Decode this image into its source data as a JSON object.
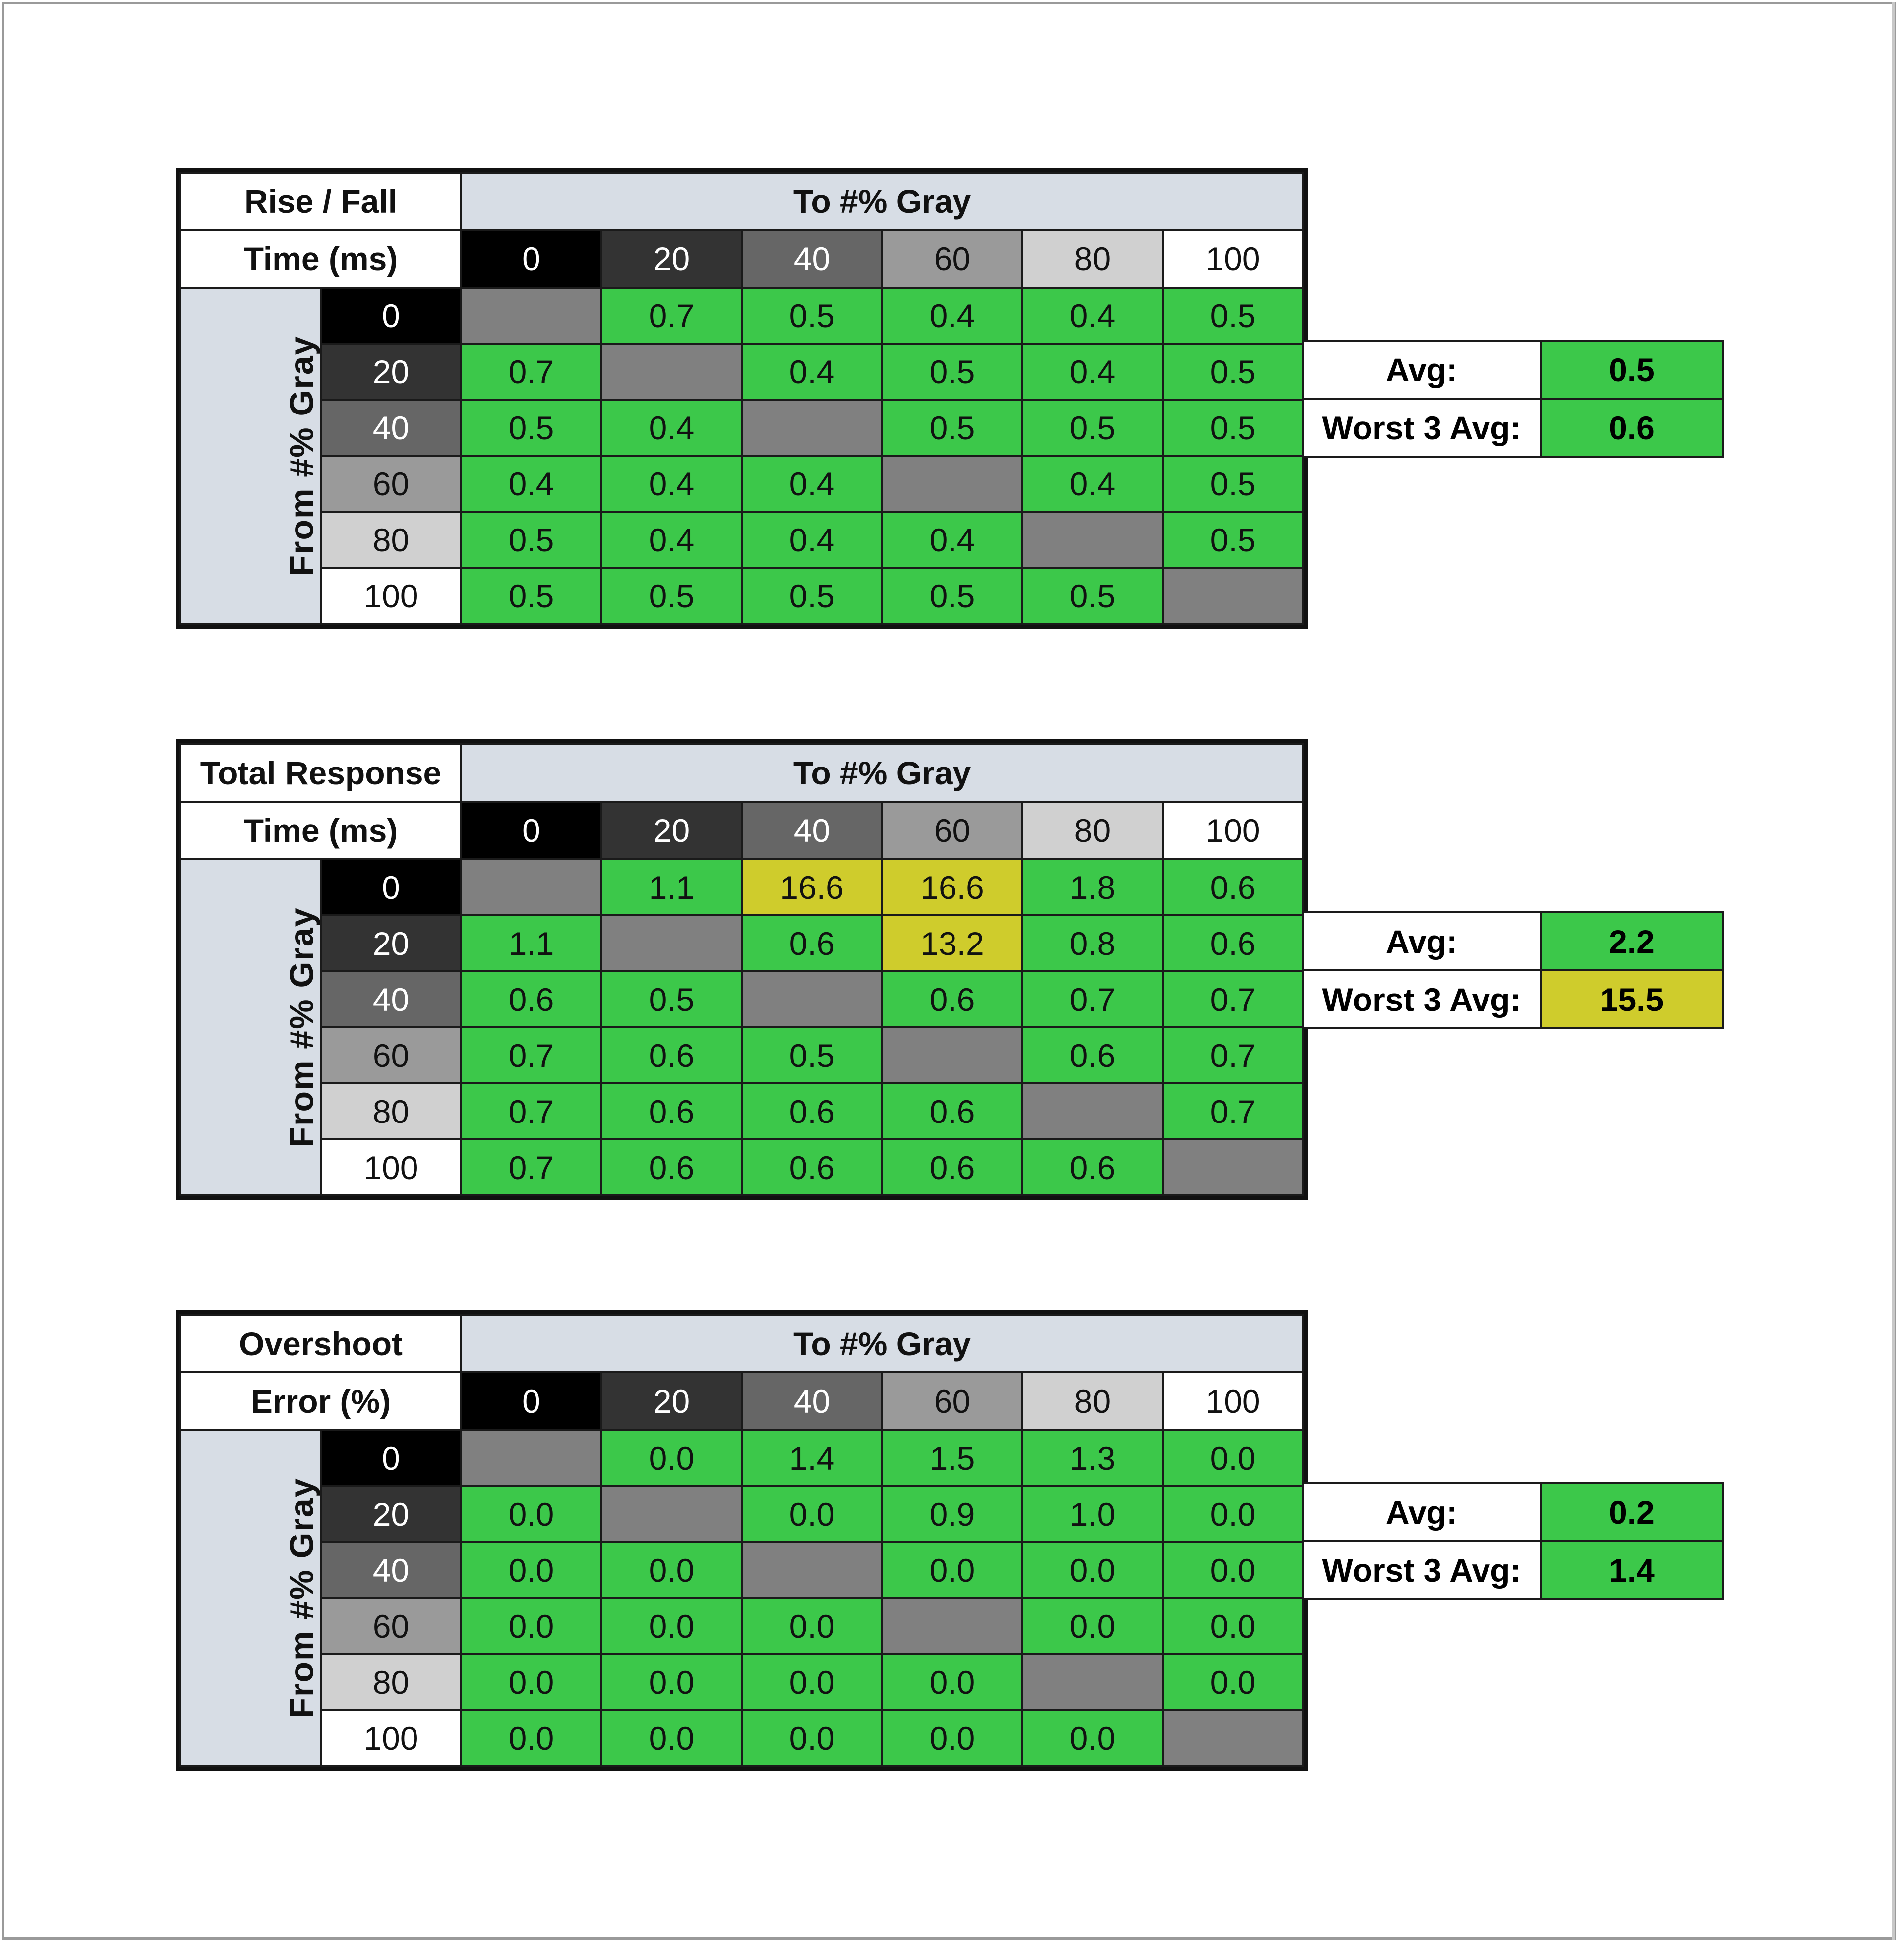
{
  "colors": {
    "good": "#3cc84a",
    "warn": "#cfcc2c",
    "diagonal": "#808080",
    "header": "#d7dde5"
  },
  "chart_data": [
    {
      "type": "heatmap",
      "title_lines": [
        "Rise / Fall",
        "Time (ms)"
      ],
      "to_label": "To #% Gray",
      "from_label": "From #% Gray",
      "columns": [
        "0",
        "20",
        "40",
        "60",
        "80",
        "100"
      ],
      "rows": [
        "0",
        "20",
        "40",
        "60",
        "80",
        "100"
      ],
      "values": [
        [
          null,
          "0.7",
          "0.5",
          "0.4",
          "0.4",
          "0.5"
        ],
        [
          "0.7",
          null,
          "0.4",
          "0.5",
          "0.4",
          "0.5"
        ],
        [
          "0.5",
          "0.4",
          null,
          "0.5",
          "0.5",
          "0.5"
        ],
        [
          "0.4",
          "0.4",
          "0.4",
          null,
          "0.4",
          "0.5"
        ],
        [
          "0.5",
          "0.4",
          "0.4",
          "0.4",
          null,
          "0.5"
        ],
        [
          "0.5",
          "0.5",
          "0.5",
          "0.5",
          "0.5",
          null
        ]
      ],
      "warn_cells": [],
      "avg_label": "Avg:",
      "avg": "0.5",
      "avg_warn": false,
      "worst_label": "Worst 3 Avg:",
      "worst": "0.6",
      "worst_warn": false
    },
    {
      "type": "heatmap",
      "title_lines": [
        "Total Response",
        "Time (ms)"
      ],
      "to_label": "To #% Gray",
      "from_label": "From #% Gray",
      "columns": [
        "0",
        "20",
        "40",
        "60",
        "80",
        "100"
      ],
      "rows": [
        "0",
        "20",
        "40",
        "60",
        "80",
        "100"
      ],
      "values": [
        [
          null,
          "1.1",
          "16.6",
          "16.6",
          "1.8",
          "0.6"
        ],
        [
          "1.1",
          null,
          "0.6",
          "13.2",
          "0.8",
          "0.6"
        ],
        [
          "0.6",
          "0.5",
          null,
          "0.6",
          "0.7",
          "0.7"
        ],
        [
          "0.7",
          "0.6",
          "0.5",
          null,
          "0.6",
          "0.7"
        ],
        [
          "0.7",
          "0.6",
          "0.6",
          "0.6",
          null,
          "0.7"
        ],
        [
          "0.7",
          "0.6",
          "0.6",
          "0.6",
          "0.6",
          null
        ]
      ],
      "warn_cells": [
        [
          0,
          2
        ],
        [
          0,
          3
        ],
        [
          1,
          3
        ]
      ],
      "avg_label": "Avg:",
      "avg": "2.2",
      "avg_warn": false,
      "worst_label": "Worst 3 Avg:",
      "worst": "15.5",
      "worst_warn": true
    },
    {
      "type": "heatmap",
      "title_lines": [
        "Overshoot",
        "Error (%)"
      ],
      "to_label": "To #% Gray",
      "from_label": "From #% Gray",
      "columns": [
        "0",
        "20",
        "40",
        "60",
        "80",
        "100"
      ],
      "rows": [
        "0",
        "20",
        "40",
        "60",
        "80",
        "100"
      ],
      "values": [
        [
          null,
          "0.0",
          "1.4",
          "1.5",
          "1.3",
          "0.0"
        ],
        [
          "0.0",
          null,
          "0.0",
          "0.9",
          "1.0",
          "0.0"
        ],
        [
          "0.0",
          "0.0",
          null,
          "0.0",
          "0.0",
          "0.0"
        ],
        [
          "0.0",
          "0.0",
          "0.0",
          null,
          "0.0",
          "0.0"
        ],
        [
          "0.0",
          "0.0",
          "0.0",
          "0.0",
          null,
          "0.0"
        ],
        [
          "0.0",
          "0.0",
          "0.0",
          "0.0",
          "0.0",
          null
        ]
      ],
      "warn_cells": [],
      "avg_label": "Avg:",
      "avg": "0.2",
      "avg_warn": false,
      "worst_label": "Worst 3 Avg:",
      "worst": "1.4",
      "worst_warn": false
    }
  ]
}
